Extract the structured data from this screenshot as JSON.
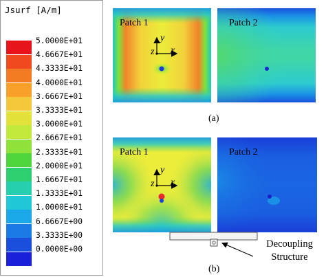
{
  "legend": {
    "title": "Jsurf [A/m]",
    "ticks": [
      "5.0000E+01",
      "4.6667E+01",
      "4.3333E+01",
      "4.0000E+01",
      "3.6667E+01",
      "3.3333E+01",
      "3.0000E+01",
      "2.6667E+01",
      "2.3333E+01",
      "2.0000E+01",
      "1.6667E+01",
      "1.3333E+01",
      "1.0000E+01",
      "6.6667E+00",
      "3.3333E+00",
      "0.0000E+00"
    ],
    "colors": [
      "#e8141c",
      "#f04a1e",
      "#f47b24",
      "#f9a02a",
      "#f4c83a",
      "#e2e23a",
      "#c2ea3c",
      "#8fe23a",
      "#4fd53c",
      "#2ecf6e",
      "#24d0ad",
      "#20c8d8",
      "#1aa8e8",
      "#1a7ae6",
      "#1a4edc",
      "#1a20d8"
    ]
  },
  "panel_a": {
    "patch1_label": "Patch 1",
    "patch2_label": "Patch 2",
    "axis_y": "y",
    "axis_x": "x",
    "axis_z": "z",
    "caption": "(a)"
  },
  "panel_b": {
    "patch1_label": "Patch 1",
    "patch2_label": "Patch 2",
    "axis_y": "y",
    "axis_x": "x",
    "axis_z": "z",
    "caption": "(b)"
  },
  "decoupling": {
    "line1": "Decoupling",
    "line2": "Structure"
  }
}
